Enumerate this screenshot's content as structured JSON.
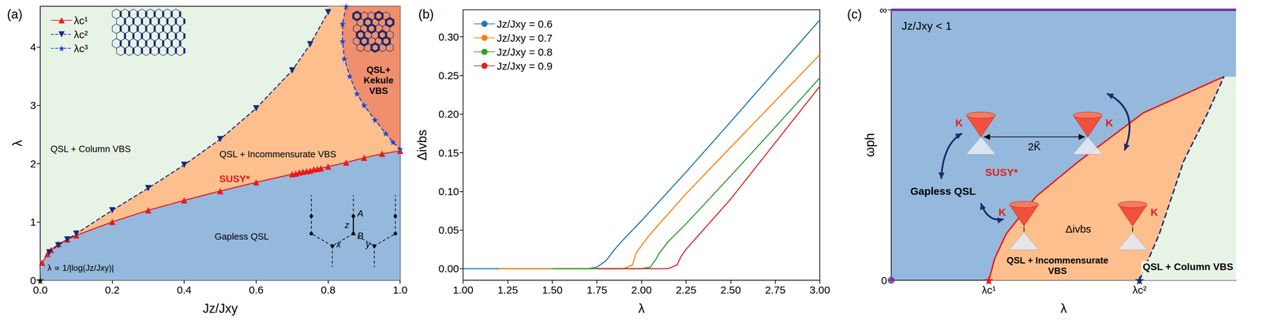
{
  "chart_data": [
    {
      "type": "line",
      "title": "(a)",
      "x_label": "Jz/Jxy",
      "y_label": "λ",
      "xlim": [
        0,
        1
      ],
      "ylim": [
        0,
        4.7
      ],
      "xticks": [
        {
          "value": 0,
          "label": "0.0"
        },
        0.2,
        0.4,
        0.6,
        0.8,
        {
          "value": 1,
          "label": "1.0"
        }
      ],
      "yticks": [
        0,
        1,
        2,
        3,
        4
      ],
      "legend": "upper left",
      "series": [
        {
          "name": "λc¹",
          "color": "#e8191e",
          "marker": "triangle",
          "line_style": "solid",
          "x": [
            0.005,
            0.02,
            0.03,
            0.05,
            0.075,
            0.1,
            0.2,
            0.3,
            0.4,
            0.5,
            0.6,
            0.7,
            0.71,
            0.72,
            0.73,
            0.74,
            0.75,
            0.76,
            0.77,
            0.78,
            0.8,
            0.85,
            0.9,
            0.95,
            1.0
          ],
          "values": [
            0.3,
            0.45,
            0.52,
            0.62,
            0.7,
            0.77,
            1.0,
            1.2,
            1.37,
            1.53,
            1.68,
            1.82,
            1.83,
            1.85,
            1.86,
            1.87,
            1.88,
            1.9,
            1.91,
            1.92,
            1.95,
            2.02,
            2.1,
            2.17,
            2.22
          ]
        },
        {
          "name": "λc²",
          "color": "#1a2a80",
          "marker": "triangle_down",
          "line_style": "dashed",
          "x": [
            0.025,
            0.05,
            0.075,
            0.1,
            0.2,
            0.3,
            0.4,
            0.5,
            0.6,
            0.7,
            0.75,
            0.8
          ],
          "values": [
            0.48,
            0.6,
            0.7,
            0.8,
            1.2,
            1.58,
            1.98,
            2.42,
            2.95,
            3.6,
            4.05,
            4.6
          ]
        },
        {
          "name": "λc³",
          "color": "#1f3fd6",
          "marker": "star",
          "line_style": "dashed",
          "x": [
            0.85,
            0.84,
            0.84,
            0.845,
            0.86,
            0.88,
            0.9,
            0.93,
            0.96,
            0.98,
            1.0
          ],
          "values": [
            4.7,
            4.4,
            4.1,
            3.8,
            3.5,
            3.2,
            3.0,
            2.75,
            2.52,
            2.37,
            2.25
          ]
        }
      ],
      "annotations": [
        {
          "text": "QSL + Column VBS"
        },
        {
          "text": "QSL + Incommensurate VBS"
        },
        {
          "text": "SUSY*"
        },
        {
          "text": "Gapless QSL"
        },
        {
          "text": "QSL+ Kekule VBS"
        },
        {
          "text": "λ ∝ 1/|log(Jz/Jxy)|",
          "x": 0,
          "y": 0
        }
      ],
      "inset_labels": [
        "z",
        "A",
        "B",
        "x",
        "y"
      ]
    },
    {
      "type": "line",
      "title": "(b)",
      "x_label": "λ",
      "y_label": "Δivbs",
      "xlim": [
        1,
        3
      ],
      "ylim": [
        -0.015,
        0.335
      ],
      "xticks": [
        {
          "value": 1,
          "label": "1.00"
        },
        1.25,
        {
          "value": 1.5,
          "label": "1.50"
        },
        1.75,
        {
          "value": 2,
          "label": "2.00"
        },
        2.25,
        {
          "value": 2.5,
          "label": "2.50"
        },
        2.75,
        {
          "value": 3,
          "label": "3.00"
        }
      ],
      "yticks": [
        {
          "value": 0,
          "label": "0.00"
        },
        0.05,
        {
          "value": 0.1,
          "label": "0.10"
        },
        0.15,
        {
          "value": 0.2,
          "label": "0.20"
        },
        0.25,
        {
          "value": 0.3,
          "label": "0.30"
        }
      ],
      "legend": "upper left",
      "series": [
        {
          "name": "Jz/Jxy = 0.6",
          "color": "#1f77b4",
          "x": [
            1.0,
            1.25,
            1.5,
            1.7,
            1.75,
            1.8,
            1.85,
            1.9,
            2.0,
            2.25,
            2.5,
            2.75,
            3.0
          ],
          "values": [
            0,
            0,
            0,
            0,
            0.002,
            0.01,
            0.025,
            0.038,
            0.062,
            0.125,
            0.19,
            0.256,
            0.322
          ]
        },
        {
          "name": "Jz/Jxy = 0.7",
          "color": "#ff7f0e",
          "x": [
            1.2,
            1.5,
            1.75,
            1.9,
            1.95,
            1.97,
            2.0,
            2.05,
            2.25,
            2.5,
            2.75,
            3.0
          ],
          "values": [
            0,
            0,
            0,
            0,
            0.005,
            0.02,
            0.03,
            0.045,
            0.097,
            0.157,
            0.217,
            0.277
          ]
        },
        {
          "name": "Jz/Jxy = 0.8",
          "color": "#2ca02c",
          "x": [
            1.5,
            1.75,
            2.0,
            2.05,
            2.08,
            2.1,
            2.15,
            2.25,
            2.5,
            2.75,
            3.0
          ],
          "values": [
            0,
            0,
            0,
            0.002,
            0.012,
            0.02,
            0.035,
            0.058,
            0.12,
            0.183,
            0.247
          ]
        },
        {
          "name": "Jz/Jxy = 0.9",
          "color": "#d62728",
          "x": [
            1.75,
            2.0,
            2.15,
            2.2,
            2.22,
            2.25,
            2.3,
            2.5,
            2.75,
            3.0
          ],
          "values": [
            0,
            0,
            0,
            0.005,
            0.015,
            0.025,
            0.038,
            0.09,
            0.163,
            0.236
          ]
        }
      ]
    },
    {
      "type": "line",
      "title": "(c)",
      "x_label": "λ",
      "y_label": "ωph",
      "xlim": [
        0,
        10
      ],
      "ylim": [
        0,
        10
      ],
      "xticks": [
        {
          "value": 2.83,
          "label": "λc¹"
        },
        {
          "value": 7.2,
          "label": "λc²"
        }
      ],
      "yticks": [
        0,
        {
          "value": 10,
          "label": "∞"
        }
      ],
      "series": [
        {
          "color": "#e8191e",
          "marker": "star",
          "line_style": "solid",
          "x": [
            2.83,
            3.0,
            3.34,
            4.2,
            5.44,
            7.31,
            9.65
          ],
          "values": [
            0,
            0.8,
            1.73,
            3.1,
            4.4,
            6.19,
            7.53
          ]
        },
        {
          "color": "#1a2a80",
          "marker": "star",
          "line_style": "dashed",
          "x": [
            7.2,
            7.78,
            8.48,
            9.18,
            9.65
          ],
          "values": [
            0,
            1.73,
            4.4,
            6.19,
            7.53
          ]
        },
        {
          "color": "#7030a0",
          "line_style": "solid",
          "x": [
            0,
            10
          ],
          "values": [
            10,
            10
          ]
        },
        {
          "type": "scatter",
          "color": "#7030a0",
          "marker": "circle",
          "x": [
            0
          ],
          "values": [
            0
          ]
        }
      ],
      "annotations": [
        {
          "text": "Jz/Jxy < 1"
        },
        {
          "text": "Gapless QSL"
        },
        {
          "text": "SUSY*"
        },
        {
          "text": "QSL + Incommensurate VBS"
        },
        {
          "text": "QSL + Column VBS"
        },
        {
          "text": "K"
        },
        {
          "text": "K"
        },
        {
          "text": "2K̃"
        },
        {
          "text": "K"
        },
        {
          "text": "K"
        },
        {
          "text": "Δivbs"
        }
      ]
    }
  ]
}
